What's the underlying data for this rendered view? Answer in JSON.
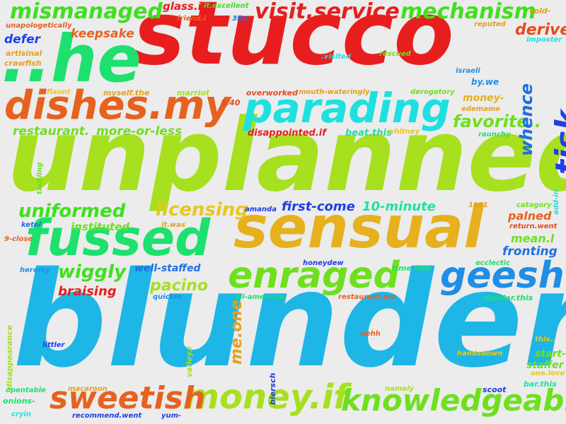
{
  "word_cloud": {
    "background": "#ececec",
    "words": [
      {
        "text": "blunder",
        "color": "#1db6e6"
      },
      {
        "text": "unplanned",
        "color": "#a6e01f"
      },
      {
        "text": "stucco",
        "color": "#e81e1e"
      },
      {
        "text": "..he",
        "color": "#1ee06e"
      },
      {
        "text": "sensual",
        "color": "#e6b01e"
      },
      {
        "text": "fussed",
        "color": "#1ee06e"
      },
      {
        "text": "dishes.my",
        "color": "#e6621e"
      },
      {
        "text": "parading",
        "color": "#1ee0e0"
      },
      {
        "text": "geesh",
        "color": "#1e8ee6"
      },
      {
        "text": "enraged",
        "color": "#6ee01e"
      },
      {
        "text": "money.if",
        "color": "#a6e01f"
      },
      {
        "text": "knowledgeably",
        "color": "#6ee01e"
      },
      {
        "text": "sweetish",
        "color": "#e6621e"
      },
      {
        "text": "mismanaged",
        "color": "#3ee01e"
      },
      {
        "text": "visit.service",
        "color": "#e81e1e"
      },
      {
        "text": "mechanism",
        "color": "#3ee01e"
      },
      {
        "text": "tisk",
        "color": "#1e3ee6"
      },
      {
        "text": "uniformed",
        "color": "#3ee01e"
      },
      {
        "text": "licensing",
        "color": "#e6c81e"
      },
      {
        "text": "wiggly",
        "color": "#3ee01e"
      },
      {
        "text": "pacino",
        "color": "#a6e01f"
      },
      {
        "text": "favorite..",
        "color": "#6ee01e"
      },
      {
        "text": "whence",
        "color": "#1e6ee6"
      },
      {
        "text": "derive",
        "color": "#e84a1e"
      },
      {
        "text": "first-come",
        "color": "#1e3ee6"
      },
      {
        "text": "10-minute",
        "color": "#1ee0a6"
      },
      {
        "text": "me.one",
        "color": "#e6a01e"
      },
      {
        "text": "restaurant.",
        "color": "#6ee01e"
      },
      {
        "text": "more-or-less",
        "color": "#6ee01e"
      },
      {
        "text": "keepsake",
        "color": "#e6621e"
      },
      {
        "text": "defer",
        "color": "#1e3ee6"
      },
      {
        "text": "glass.i",
        "color": "#e81e1e"
      },
      {
        "text": "braising",
        "color": "#e81e1e"
      },
      {
        "text": "instituted",
        "color": "#6ee01e"
      },
      {
        "text": "palned",
        "color": "#e6621e"
      },
      {
        "text": "mean.l",
        "color": "#6ee01e"
      },
      {
        "text": "fronting",
        "color": "#1e6ee6"
      },
      {
        "text": "well-staffed",
        "color": "#1e6ee6"
      },
      {
        "text": "start-",
        "color": "#6ee01e"
      },
      {
        "text": "staffer",
        "color": "#6ee01e"
      },
      {
        "text": "money-",
        "color": "#e6b01e"
      },
      {
        "text": "disappointed.if",
        "color": "#e81e1e"
      },
      {
        "text": "beat.this",
        "color": "#1ee0a6"
      },
      {
        "text": "unapologetically",
        "color": "#e6621e"
      },
      {
        "text": "artisinal",
        "color": "#e6a01e"
      },
      {
        "text": "crawfish",
        "color": "#e6a01e"
      },
      {
        "text": "friend.i",
        "color": "#e6621e"
      },
      {
        "text": "it.excellent",
        "color": "#3ee01e"
      },
      {
        "text": "3lbs",
        "color": "#1e6ee6"
      },
      {
        "text": "reputed",
        "color": "#e6a01e"
      },
      {
        "text": "cold-",
        "color": "#e6a01e"
      },
      {
        "text": "imposter",
        "color": "#1ee0e0"
      },
      {
        "text": ".visited",
        "color": "#1ee0e0"
      },
      {
        "text": "rescued",
        "color": "#6ee01e"
      },
      {
        "text": "israeli",
        "color": "#1e8ee6"
      },
      {
        "text": "by.we",
        "color": "#1e8ee6"
      },
      {
        "text": "flaunt",
        "color": "#e6c81e"
      },
      {
        "text": "myself.the",
        "color": "#e6a01e"
      },
      {
        "text": "marriot",
        "color": "#a6e01f"
      },
      {
        "text": "8:40",
        "color": "#e84a1e"
      },
      {
        "text": "overworked",
        "color": "#e84a1e"
      },
      {
        "text": "mouth-wateringly",
        "color": "#e6a01e"
      },
      {
        "text": "derogatory",
        "color": "#6ee01e"
      },
      {
        "text": "edemame",
        "color": "#e6a01e"
      },
      {
        "text": "whitney",
        "color": "#e6c81e"
      },
      {
        "text": "raunchy",
        "color": "#1ee06e"
      },
      {
        "text": "tackling",
        "color": "#6ee01e"
      },
      {
        "text": "add-in",
        "color": "#1ee0e0"
      },
      {
        "text": "1981",
        "color": "#e6a01e"
      },
      {
        "text": "catagory",
        "color": "#6ee01e"
      },
      {
        "text": "amanda",
        "color": "#1e3ee6"
      },
      {
        "text": "ketel",
        "color": "#1e6ee6"
      },
      {
        "text": "it.was",
        "color": "#e6a01e"
      },
      {
        "text": "return.went",
        "color": "#e84a1e"
      },
      {
        "text": "9-close",
        "color": "#e6621e"
      },
      {
        "text": "heremy",
        "color": "#1e8ee6"
      },
      {
        "text": "honeydew",
        "color": "#1e3ee6"
      },
      {
        "text": "time.had",
        "color": "#1ee06e"
      },
      {
        "text": "ecclectic",
        "color": "#1ee06e"
      },
      {
        "text": "quickie",
        "color": "#1e8ee6"
      },
      {
        "text": "all-american",
        "color": "#1ee06e"
      },
      {
        "text": "restaurant.my",
        "color": "#e6621e"
      },
      {
        "text": "regular.this",
        "color": "#1ee06e"
      },
      {
        "text": "disappearance",
        "color": "#a6e01f"
      },
      {
        "text": "valley.l",
        "color": "#a6e01f"
      },
      {
        "text": "biersch",
        "color": "#1e3ee6"
      },
      {
        "text": "eehh",
        "color": "#e6621e"
      },
      {
        "text": "littler",
        "color": "#1e3ee6"
      },
      {
        "text": "this..",
        "color": "#e6c81e"
      },
      {
        "text": "handsdown",
        "color": "#e6c81e"
      },
      {
        "text": "one.love",
        "color": "#e6c81e"
      },
      {
        "text": "bar.this",
        "color": "#1ee0a6"
      },
      {
        "text": "scoot",
        "color": "#1e3ee6"
      },
      {
        "text": "namely",
        "color": "#a6e01f"
      },
      {
        "text": "opentable",
        "color": "#1ee06e"
      },
      {
        "text": "macaroon",
        "color": "#e6a01e"
      },
      {
        "text": "onions-",
        "color": "#1ee06e"
      },
      {
        "text": "cryin",
        "color": "#1ee0e0"
      },
      {
        "text": "recommend.went",
        "color": "#1e3ee6"
      },
      {
        "text": "yum-",
        "color": "#1e3ee6"
      }
    ]
  }
}
